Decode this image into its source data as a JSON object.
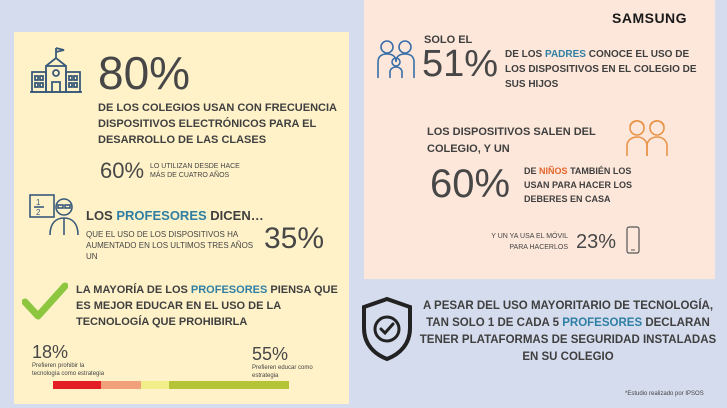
{
  "brand": "SAMSUNG",
  "left": {
    "stat1_value": "80%",
    "stat1_text": "DE LOS COLEGIOS USAN CON FRECUENCIA DISPOSITIVOS ELECTRÓNICOS PARA EL DESARROLLO DE LAS CLASES",
    "stat1_sub_value": "60%",
    "stat1_sub_text": "LO UTILIZAN DESDE HACE MÁS DE CUATRO AÑOS",
    "teachers_title_pre": "LOS",
    "teachers_title_hl": "PROFESORES",
    "teachers_title_post": "DICEN…",
    "teachers_text": "QUE EL USO DE LOS DISPOSITIVOS HA AUMENTADO EN LOS ULTIMOS TRES AÑOS UN",
    "teachers_value": "35%",
    "majority_pre": "LA MAYORÍA DE LOS",
    "majority_hl": "PROFESORES",
    "majority_post": "PIENSA QUE ES MEJOR EDUCAR EN EL USO DE LA TECNOLOGÍA QUE PROHIBIRLA",
    "prohibit_value": "18%",
    "prohibit_text": "Prefieren prohibir la tecnología como estrategia",
    "educate_value": "55%",
    "educate_text": "Prefieren educar como estrategia",
    "scale_colors": [
      "#e31e24",
      "#f0a07a",
      "#f2ee8a",
      "#b5c436"
    ]
  },
  "right": {
    "parents_solo": "SOLO EL",
    "parents_value": "51%",
    "parents_pre": "DE LOS",
    "parents_hl": "PADRES",
    "parents_post": "CONOCE EL USO DE LOS DISPOSITIVOS EN EL COLEGIO DE SUS HIJOS",
    "devices_text": "LOS DISPOSITIVOS SALEN DEL COLEGIO, Y UN",
    "kids_value": "60%",
    "kids_pre": "DE",
    "kids_hl": "NIÑOS",
    "kids_post": "TAMBIÉN LOS USAN PARA HACER LOS DEBERES EN CASA",
    "mobile_text": "Y UN YA USA EL MÓVIL PARA HACERLOS",
    "mobile_value": "23%"
  },
  "bottom": {
    "text_pre": "A PESAR DEL USO MAYORITARIO DE TECNOLOGÍA, TAN SOLO 1 DE CADA 5",
    "text_hl": "PROFESORES",
    "text_post": "DECLARAN TENER PLATAFORMAS DE SEGURIDAD INSTALADAS EN SU COLEGIO",
    "footnote": "*Estudio realizado por IPSOS"
  },
  "colors": {
    "accent_blue": "#2f7fa4",
    "accent_orange": "#e2652c",
    "check_green": "#8dc63f"
  }
}
